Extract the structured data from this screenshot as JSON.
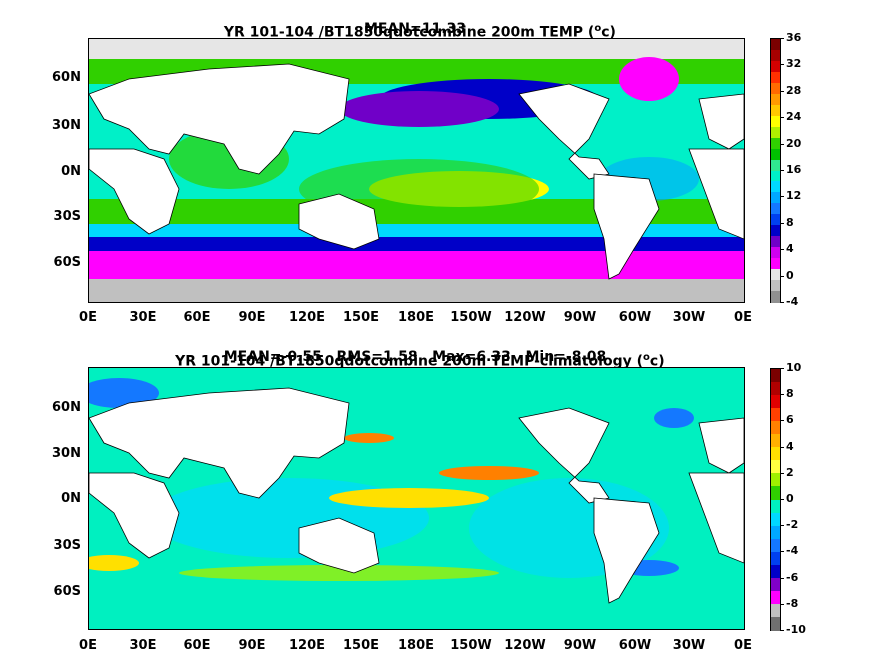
{
  "panels": [
    {
      "id": "top",
      "title_prefix": "YR 101-104 /BT1850qdotcombine 200m TEMP (",
      "title_unit_sup": "o",
      "title_unit": "c)",
      "stats": "MEAN=11.33",
      "lat_labels": [
        "60N",
        "30N",
        "0N",
        "30S",
        "60S"
      ],
      "lon_labels": [
        "0E",
        "30E",
        "60E",
        "90E",
        "120E",
        "150E",
        "180E",
        "150W",
        "120W",
        "90W",
        "60W",
        "30W",
        "0E"
      ],
      "colorbar": {
        "labels": [
          "36",
          "32",
          "28",
          "24",
          "20",
          "16",
          "12",
          "8",
          "4",
          "0",
          "-4"
        ],
        "colors": [
          "#7a0000",
          "#a60000",
          "#d40000",
          "#ff3000",
          "#ff6a00",
          "#ff9a00",
          "#ffc800",
          "#ffff00",
          "#b0f000",
          "#30d000",
          "#00c000",
          "#30e890",
          "#00f0c8",
          "#00d8ff",
          "#00a8ff",
          "#1478ff",
          "#0040f0",
          "#0000c8",
          "#7000c8",
          "#d000f0",
          "#ff00ff",
          "#e6e6e6",
          "#c0c0c0",
          "#909090"
        ]
      }
    },
    {
      "id": "bottom",
      "title_prefix": "YR 101-104 /BT1850qdotcombine 200m TEMP-climatology (",
      "title_unit_sup": "o",
      "title_unit": "c)",
      "stats": "MEAN=-0.55   RMS=1.58   Max=6.33   Min=-8.08",
      "lat_labels": [
        "60N",
        "30N",
        "0N",
        "30S",
        "60S"
      ],
      "lon_labels": [
        "0E",
        "30E",
        "60E",
        "90E",
        "120E",
        "150E",
        "180E",
        "150W",
        "120W",
        "90W",
        "60W",
        "30W",
        "0E"
      ],
      "colorbar": {
        "labels": [
          "10",
          "8",
          "6",
          "4",
          "2",
          "0",
          "-2",
          "-4",
          "-6",
          "-8",
          "-10"
        ],
        "colors": [
          "#7a0000",
          "#b00000",
          "#e00000",
          "#ff4000",
          "#ff8000",
          "#ffb000",
          "#ffe000",
          "#ffff40",
          "#a0f000",
          "#30d000",
          "#00f0c0",
          "#00d8ff",
          "#00a8ff",
          "#1478ff",
          "#0040f0",
          "#0000c8",
          "#8000c8",
          "#ff00ff",
          "#c0c0c0",
          "#707070"
        ]
      }
    }
  ]
}
